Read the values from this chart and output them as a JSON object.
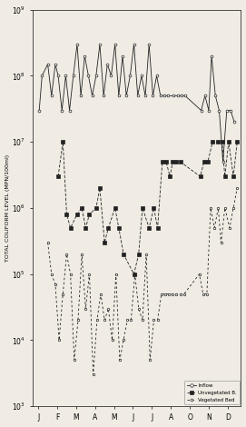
{
  "ylabel": "TOTAL COLIFORM LEVEL (MPN/100ml)",
  "background_color": "#f0ece4",
  "months": [
    "J",
    "F",
    "M",
    "A",
    "M",
    "J",
    "J",
    "A",
    "O",
    "N",
    "D"
  ],
  "xlim": [
    -0.3,
    10.5
  ],
  "ylim_min": 1000,
  "ylim_max": 1000000000,
  "inflow_x": [
    0.05,
    0.2,
    0.5,
    0.7,
    0.9,
    1.05,
    1.25,
    1.45,
    1.65,
    1.85,
    2.05,
    2.25,
    2.45,
    2.65,
    2.85,
    3.05,
    3.25,
    3.45,
    3.65,
    3.85,
    4.05,
    4.25,
    4.45,
    4.65,
    4.85,
    5.05,
    5.25,
    5.45,
    5.65,
    5.85,
    6.05,
    6.25,
    6.45,
    6.65,
    6.85,
    7.15,
    7.35,
    7.55,
    7.75,
    8.6,
    8.8,
    9.0,
    9.15,
    9.35,
    9.55,
    9.75,
    9.95,
    10.15,
    10.35
  ],
  "inflow_y": [
    30000000.0,
    100000000.0,
    150000000.0,
    50000000.0,
    150000000.0,
    100000000.0,
    30000000.0,
    100000000.0,
    30000000.0,
    100000000.0,
    300000000.0,
    50000000.0,
    200000000.0,
    100000000.0,
    50000000.0,
    100000000.0,
    300000000.0,
    50000000.0,
    150000000.0,
    100000000.0,
    300000000.0,
    50000000.0,
    200000000.0,
    50000000.0,
    100000000.0,
    300000000.0,
    50000000.0,
    100000000.0,
    50000000.0,
    300000000.0,
    50000000.0,
    100000000.0,
    50000000.0,
    50000000.0,
    50000000.0,
    50000000.0,
    50000000.0,
    50000000.0,
    50000000.0,
    30000000.0,
    50000000.0,
    30000000.0,
    200000000.0,
    50000000.0,
    30000000.0,
    5000000.0,
    30000000.0,
    30000000.0,
    20000000.0
  ],
  "unvg_x": [
    1.05,
    1.3,
    1.5,
    1.7,
    2.05,
    2.3,
    2.5,
    2.7,
    3.05,
    3.25,
    3.5,
    3.7,
    4.05,
    4.25,
    4.5,
    5.05,
    5.3,
    5.5,
    5.85,
    6.1,
    6.3,
    6.55,
    6.75,
    6.95,
    7.1,
    7.3,
    7.5,
    8.55,
    8.75,
    8.95,
    9.2,
    9.5,
    9.7,
    9.85,
    10.05,
    10.3,
    10.5
  ],
  "unvg_y": [
    3000000.0,
    10000000.0,
    800000.0,
    500000.0,
    800000.0,
    1000000.0,
    500000.0,
    800000.0,
    1000000.0,
    2000000.0,
    300000.0,
    500000.0,
    1000000.0,
    500000.0,
    200000.0,
    100000.0,
    200000.0,
    1000000.0,
    500000.0,
    1000000.0,
    500000.0,
    5000000.0,
    5000000.0,
    3000000.0,
    5000000.0,
    5000000.0,
    5000000.0,
    3000000.0,
    5000000.0,
    5000000.0,
    10000000.0,
    10000000.0,
    10000000.0,
    3000000.0,
    10000000.0,
    3000000.0,
    10000000.0
  ],
  "vg_x": [
    0.5,
    0.7,
    0.9,
    1.1,
    1.3,
    1.5,
    1.7,
    1.9,
    2.1,
    2.3,
    2.5,
    2.7,
    2.9,
    3.1,
    3.3,
    3.5,
    3.7,
    3.9,
    4.1,
    4.3,
    4.5,
    4.7,
    4.9,
    5.1,
    5.3,
    5.5,
    5.7,
    5.9,
    6.1,
    6.3,
    6.5,
    6.7,
    6.9,
    7.1,
    7.3,
    7.5,
    7.7,
    8.5,
    8.7,
    8.9,
    9.1,
    9.3,
    9.5,
    9.65,
    9.85,
    10.1,
    10.3,
    10.5
  ],
  "vg_y": [
    300000.0,
    100000.0,
    70000.0,
    10000.0,
    50000.0,
    200000.0,
    100000.0,
    5000.0,
    20000.0,
    200000.0,
    30000.0,
    100000.0,
    3000.0,
    20000.0,
    50000.0,
    20000.0,
    30000.0,
    10000.0,
    100000.0,
    5000.0,
    10000.0,
    20000.0,
    20000.0,
    100000.0,
    30000.0,
    20000.0,
    200000.0,
    5000.0,
    20000.0,
    20000.0,
    50000.0,
    50000.0,
    50000.0,
    50000.0,
    50000.0,
    50000.0,
    50000.0,
    100000.0,
    50000.0,
    50000.0,
    1000000.0,
    500000.0,
    1000000.0,
    300000.0,
    1000000.0,
    500000.0,
    1000000.0,
    2000000.0
  ]
}
